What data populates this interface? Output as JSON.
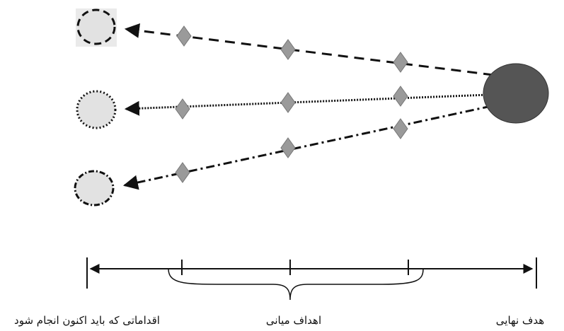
{
  "timeline": {
    "labels": {
      "final_goal": "هدف نهایی",
      "intermediate_goals": "اهداف میانی",
      "current_actions": "اقداماتی که باید اکنون انجام شود"
    }
  },
  "colors": {
    "goal_fill": "#555555",
    "diamond_fill": "#9a9a9a",
    "start_circle_fill": "#e2e2e2",
    "line": "#111111"
  }
}
